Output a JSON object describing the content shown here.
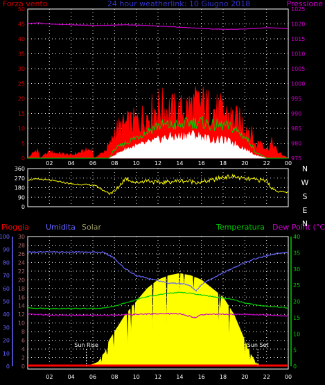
{
  "header": {
    "left_label": "Forza vento",
    "center_title": "24 hour weatherlink: 10 Giugno 2018",
    "right_label": "Pressione"
  },
  "colors": {
    "background": "#000000",
    "grid": "#ffffff",
    "pressure": "#cc00cc",
    "wind_gust": "#ff0000",
    "wind_avg": "#00cc00",
    "wind_low": "#ffffff",
    "direction": "#ffff00",
    "humidity": "#6666ff",
    "rain": "#ff0000",
    "temperature": "#00cc00",
    "dew_point": "#cc00cc",
    "solar": "#ffff00",
    "axis_left_top": "#cc0000",
    "axis_right_top": "#cc00cc",
    "axis_humidity": "#6666ff",
    "axis_solar": "#aa6666",
    "axis_temp": "#00cc00",
    "legend_solar": "#999966"
  },
  "chart_data": [
    {
      "type": "line",
      "title": "24 hour weatherlink: 10 Giugno 2018",
      "xlabel": "",
      "x_ticks": [
        "02",
        "04",
        "06",
        "08",
        "10",
        "12",
        "14",
        "16",
        "18",
        "20",
        "22",
        "00"
      ],
      "xlim": [
        0,
        24
      ],
      "y_left_label": "Forza vento",
      "y_left_ticks": [
        0,
        5,
        10,
        15,
        20,
        25,
        30,
        35,
        40,
        45,
        50
      ],
      "ylim_left": [
        0,
        50
      ],
      "y_right_label": "Pressione",
      "y_right_ticks": [
        975,
        980,
        985,
        990,
        995,
        1000,
        1005,
        1010,
        1015,
        1020,
        1025
      ],
      "ylim_right": [
        975,
        1025
      ],
      "grid": true,
      "series": [
        {
          "name": "Pressione",
          "axis": "right",
          "x": [
            0,
            1,
            2,
            3,
            4,
            5,
            6,
            7,
            8,
            9,
            10,
            11,
            12,
            13,
            14,
            15,
            16,
            17,
            18,
            19,
            20,
            21,
            22,
            23,
            24
          ],
          "values": [
            1020.2,
            1020.3,
            1020.0,
            1019.8,
            1019.7,
            1019.6,
            1019.5,
            1019.5,
            1019.6,
            1019.7,
            1019.6,
            1019.5,
            1019.3,
            1019.1,
            1018.9,
            1018.7,
            1018.5,
            1018.3,
            1018.2,
            1018.2,
            1018.3,
            1018.5,
            1018.7,
            1018.6,
            1018.4
          ]
        },
        {
          "name": "wind_gust",
          "axis": "left",
          "x": [
            0,
            0.9,
            1.1,
            2,
            4,
            5.9,
            6.1,
            7,
            7.7,
            8,
            9,
            10,
            11,
            12,
            13,
            14,
            15,
            16,
            17,
            18,
            19,
            20,
            20.5,
            21,
            21.5,
            22,
            22.5,
            23,
            23.5,
            24
          ],
          "values": [
            0,
            3,
            0,
            2,
            1,
            3,
            0,
            2,
            5,
            9,
            11,
            12,
            14,
            17,
            16,
            15,
            17,
            18,
            16,
            15,
            13,
            11,
            9,
            4,
            6,
            3,
            5,
            2,
            1,
            0
          ]
        },
        {
          "name": "wind_avg",
          "axis": "left",
          "x": [
            0,
            7.5,
            8,
            9,
            10,
            11,
            12,
            13,
            14,
            15,
            16,
            17,
            18,
            19,
            20,
            20.5,
            21,
            22,
            24
          ],
          "values": [
            0,
            0,
            3,
            5,
            7,
            9,
            11,
            11,
            11,
            12,
            12,
            11,
            11,
            10,
            7,
            5,
            2,
            0,
            0
          ]
        },
        {
          "name": "wind_low",
          "axis": "left",
          "x": [
            0,
            7.5,
            8,
            9,
            10,
            11,
            12,
            13,
            14,
            15,
            16,
            17,
            18,
            19,
            20,
            21,
            22,
            24
          ],
          "values": [
            0,
            0,
            1,
            3,
            4,
            5,
            6,
            7,
            7,
            8,
            7,
            6,
            6,
            5,
            3,
            1,
            0,
            0
          ]
        }
      ]
    },
    {
      "type": "line",
      "title": "",
      "xlim": [
        0,
        24
      ],
      "y_ticks": [
        0,
        90,
        180,
        270,
        360
      ],
      "ylim": [
        0,
        360
      ],
      "y_right_labels": [
        "N",
        "W",
        "S",
        "E",
        "N"
      ],
      "grid": true,
      "series": [
        {
          "name": "direzione",
          "x": [
            0,
            1,
            2,
            3,
            4,
            5,
            6,
            6.5,
            7,
            7.5,
            8,
            9,
            10,
            11,
            12,
            13,
            14,
            15,
            16,
            17,
            18,
            19,
            20,
            21,
            22,
            22.5,
            23,
            24
          ],
          "values": [
            255,
            260,
            250,
            235,
            215,
            210,
            205,
            185,
            150,
            130,
            140,
            270,
            225,
            250,
            225,
            235,
            245,
            240,
            230,
            250,
            280,
            285,
            260,
            255,
            245,
            175,
            145,
            135
          ]
        }
      ]
    },
    {
      "type": "area",
      "title": "",
      "legend": [
        "Pioggia",
        "Umidita",
        "Solar",
        "Temperatura",
        "Dew Point (°C)"
      ],
      "x_ticks": [
        "02",
        "04",
        "06",
        "08",
        "10",
        "12",
        "14",
        "16",
        "18",
        "20",
        "22",
        "00"
      ],
      "xlim": [
        0,
        24
      ],
      "y_humidity_ticks": [
        0,
        10,
        20,
        30,
        40,
        50,
        60,
        70,
        80,
        90,
        100
      ],
      "ylim_humidity": [
        0,
        100
      ],
      "y_rain_ticks": [
        0,
        2,
        4,
        6,
        8,
        10,
        12,
        14,
        16,
        18,
        20,
        22,
        24,
        26,
        28,
        30
      ],
      "ylim_rain": [
        0,
        30
      ],
      "y_temp_ticks": [
        0,
        5,
        10,
        15,
        20,
        25,
        30,
        35,
        40
      ],
      "ylim_temp": [
        0,
        40
      ],
      "annotations": [
        "Sun Rise",
        "Sun Set"
      ],
      "sun_rise_x": 5.4,
      "sun_set_x": 21.2,
      "grid": true,
      "series": [
        {
          "name": "Umidita",
          "axis": "humidity",
          "x": [
            0,
            1,
            2,
            3,
            4,
            5,
            6,
            7,
            8,
            9,
            10,
            11,
            12,
            13,
            14,
            15,
            15.5,
            16,
            17,
            18,
            19,
            20,
            21,
            22,
            23,
            24
          ],
          "values": [
            88,
            88,
            88,
            88,
            88,
            88,
            88,
            88,
            83,
            75,
            70,
            68,
            66,
            64,
            64,
            62,
            58,
            63,
            68,
            72,
            76,
            80,
            83,
            85,
            87,
            88
          ]
        },
        {
          "name": "Temperatura",
          "axis": "temp",
          "x": [
            0,
            2,
            4,
            6,
            7,
            8,
            9,
            10,
            11,
            12,
            13,
            14,
            15,
            16,
            17,
            18,
            19,
            20,
            21,
            22,
            24
          ],
          "values": [
            18,
            17.8,
            17.8,
            17.8,
            18,
            18.5,
            19.5,
            20.5,
            21.5,
            22,
            22.5,
            22.8,
            22.5,
            22,
            21.5,
            21,
            20.5,
            19.5,
            19,
            18.5,
            18
          ]
        },
        {
          "name": "Dew Point (°C)",
          "axis": "temp",
          "x": [
            0,
            2,
            4,
            6,
            8,
            10,
            12,
            14,
            15.5,
            16,
            17,
            18,
            20,
            22,
            24
          ],
          "values": [
            16,
            15.8,
            15.7,
            15.7,
            15.8,
            16,
            16.2,
            16.2,
            15,
            15.9,
            16.1,
            16,
            16,
            15.8,
            15.5
          ]
        },
        {
          "name": "Solar",
          "axis": "rain",
          "x": [
            0,
            5.4,
            6,
            6.5,
            7,
            7.5,
            8,
            9,
            10,
            11,
            12,
            13,
            14,
            15,
            16,
            17,
            18,
            19,
            20,
            20.5,
            21,
            21.5,
            24
          ],
          "values": [
            0,
            0,
            0.5,
            1,
            3,
            6,
            8,
            12,
            15,
            18,
            20,
            21,
            21.5,
            21,
            20,
            18,
            16,
            12,
            6,
            3,
            1,
            0,
            0
          ]
        },
        {
          "name": "Pioggia",
          "axis": "rain",
          "x": [
            0,
            24
          ],
          "values": [
            0,
            0
          ]
        }
      ]
    }
  ]
}
